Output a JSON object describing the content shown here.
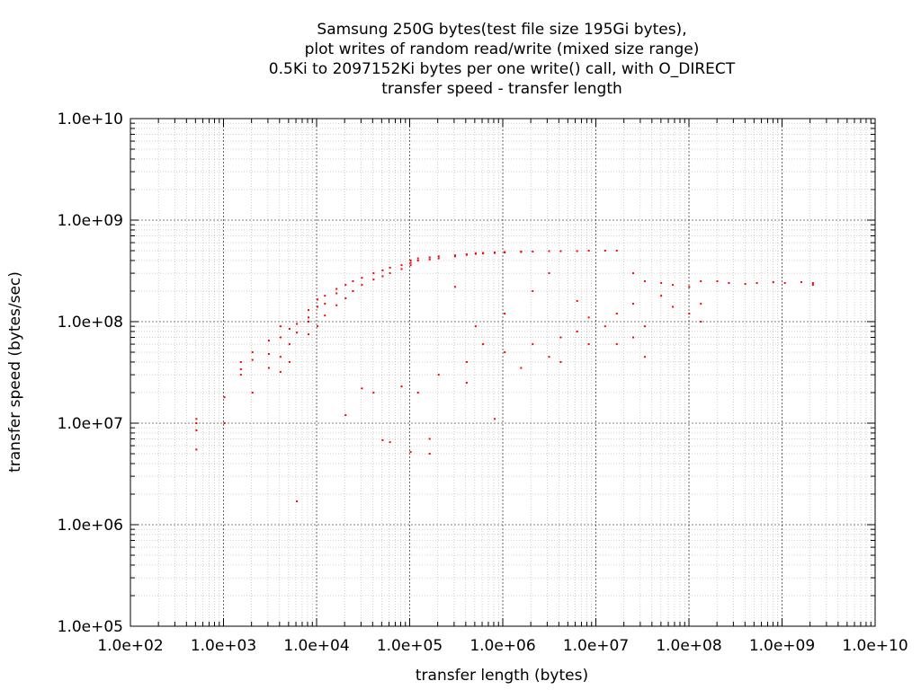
{
  "chart_data": {
    "type": "scatter",
    "title_lines": [
      "Samsung 250G bytes(test file size 195Gi bytes),",
      "plot writes of random read/write (mixed size range)",
      "0.5Ki to 2097152Ki bytes per one write() call, with O_DIRECT",
      "transfer speed - transfer length"
    ],
    "xlabel": "transfer length (bytes)",
    "ylabel": "transfer speed (bytes/sec)",
    "x_scale": "log",
    "y_scale": "log",
    "xlim": [
      100,
      10000000000
    ],
    "ylim": [
      100000,
      10000000000
    ],
    "x_ticks": [
      "1.0e+02",
      "1.0e+03",
      "1.0e+04",
      "1.0e+05",
      "1.0e+06",
      "1.0e+07",
      "1.0e+08",
      "1.0e+09",
      "1.0e+10"
    ],
    "y_ticks": [
      "1.0e+05",
      "1.0e+06",
      "1.0e+07",
      "1.0e+08",
      "1.0e+09",
      "1.0e+10"
    ],
    "grid": true,
    "legend": "none",
    "series": [
      {
        "color": "#ff0000",
        "marker": "dot",
        "points": [
          [
            512,
            10000000
          ],
          [
            512,
            11000000
          ],
          [
            512,
            8500000
          ],
          [
            512,
            5500000
          ],
          [
            1024,
            10000000
          ],
          [
            1024,
            18000000
          ],
          [
            1536,
            30000000
          ],
          [
            1536,
            40000000
          ],
          [
            1536,
            34000000
          ],
          [
            2048,
            50000000
          ],
          [
            2048,
            42000000
          ],
          [
            2048,
            20000000
          ],
          [
            3072,
            35000000
          ],
          [
            3072,
            48000000
          ],
          [
            3072,
            65000000
          ],
          [
            4096,
            45000000
          ],
          [
            4096,
            70000000
          ],
          [
            4096,
            90000000
          ],
          [
            4096,
            32000000
          ],
          [
            5120,
            60000000
          ],
          [
            5120,
            85000000
          ],
          [
            5120,
            40000000
          ],
          [
            6144,
            1700000
          ],
          [
            6144,
            95000000
          ],
          [
            6144,
            78000000
          ],
          [
            8192,
            100000000
          ],
          [
            8192,
            75000000
          ],
          [
            8192,
            130000000
          ],
          [
            8192,
            110000000
          ],
          [
            10240,
            140000000
          ],
          [
            10240,
            90000000
          ],
          [
            10240,
            165000000
          ],
          [
            12288,
            150000000
          ],
          [
            12288,
            180000000
          ],
          [
            12288,
            115000000
          ],
          [
            16384,
            190000000
          ],
          [
            16384,
            210000000
          ],
          [
            16384,
            145000000
          ],
          [
            20480,
            230000000
          ],
          [
            20480,
            12000000
          ],
          [
            20480,
            170000000
          ],
          [
            24576,
            250000000
          ],
          [
            24576,
            200000000
          ],
          [
            30720,
            22000000
          ],
          [
            30720,
            270000000
          ],
          [
            30720,
            230000000
          ],
          [
            40960,
            300000000
          ],
          [
            40960,
            260000000
          ],
          [
            40960,
            20000000
          ],
          [
            51200,
            320000000
          ],
          [
            51200,
            6800000
          ],
          [
            51200,
            280000000
          ],
          [
            61440,
            340000000
          ],
          [
            61440,
            300000000
          ],
          [
            61440,
            6500000
          ],
          [
            81920,
            360000000
          ],
          [
            81920,
            330000000
          ],
          [
            81920,
            23000000
          ],
          [
            102400,
            380000000
          ],
          [
            102400,
            360000000
          ],
          [
            102400,
            400000000
          ],
          [
            102400,
            5200000
          ],
          [
            122880,
            400000000
          ],
          [
            122880,
            420000000
          ],
          [
            122880,
            20000000
          ],
          [
            163840,
            410000000
          ],
          [
            163840,
            430000000
          ],
          [
            163840,
            7000000
          ],
          [
            163840,
            5000000
          ],
          [
            204800,
            420000000
          ],
          [
            204800,
            440000000
          ],
          [
            204800,
            30000000
          ],
          [
            307200,
            440000000
          ],
          [
            307200,
            450000000
          ],
          [
            307200,
            220000000
          ],
          [
            409600,
            455000000
          ],
          [
            409600,
            460000000
          ],
          [
            409600,
            40000000
          ],
          [
            409600,
            25000000
          ],
          [
            512000,
            465000000
          ],
          [
            512000,
            470000000
          ],
          [
            512000,
            90000000
          ],
          [
            614400,
            470000000
          ],
          [
            614400,
            475000000
          ],
          [
            614400,
            60000000
          ],
          [
            819200,
            480000000
          ],
          [
            819200,
            475000000
          ],
          [
            819200,
            11000000
          ],
          [
            1048576,
            485000000
          ],
          [
            1048576,
            480000000
          ],
          [
            1048576,
            50000000
          ],
          [
            1048576,
            120000000
          ],
          [
            1572864,
            490000000
          ],
          [
            1572864,
            485000000
          ],
          [
            1572864,
            35000000
          ],
          [
            2097152,
            490000000
          ],
          [
            2097152,
            60000000
          ],
          [
            2097152,
            200000000
          ],
          [
            3145728,
            495000000
          ],
          [
            3145728,
            45000000
          ],
          [
            3145728,
            300000000
          ],
          [
            4194304,
            495000000
          ],
          [
            4194304,
            70000000
          ],
          [
            4194304,
            40000000
          ],
          [
            6291456,
            495000000
          ],
          [
            6291456,
            80000000
          ],
          [
            6291456,
            160000000
          ],
          [
            8388608,
            500000000
          ],
          [
            8388608,
            60000000
          ],
          [
            8388608,
            110000000
          ],
          [
            12582912,
            500000000
          ],
          [
            12582912,
            90000000
          ],
          [
            16777216,
            500000000
          ],
          [
            16777216,
            120000000
          ],
          [
            16777216,
            60000000
          ],
          [
            25165824,
            300000000
          ],
          [
            25165824,
            70000000
          ],
          [
            25165824,
            150000000
          ],
          [
            33554432,
            250000000
          ],
          [
            33554432,
            90000000
          ],
          [
            33554432,
            45000000
          ],
          [
            50331648,
            240000000
          ],
          [
            50331648,
            180000000
          ],
          [
            67108864,
            230000000
          ],
          [
            67108864,
            140000000
          ],
          [
            100663296,
            220000000
          ],
          [
            100663296,
            120000000
          ],
          [
            134217728,
            250000000
          ],
          [
            134217728,
            100000000
          ],
          [
            134217728,
            150000000
          ],
          [
            201326592,
            250000000
          ],
          [
            268435456,
            240000000
          ],
          [
            402653184,
            235000000
          ],
          [
            536870912,
            240000000
          ],
          [
            805306368,
            245000000
          ],
          [
            1073741824,
            240000000
          ],
          [
            1610612736,
            245000000
          ],
          [
            2147483648,
            240000000
          ],
          [
            2147483648,
            230000000
          ]
        ]
      }
    ]
  }
}
